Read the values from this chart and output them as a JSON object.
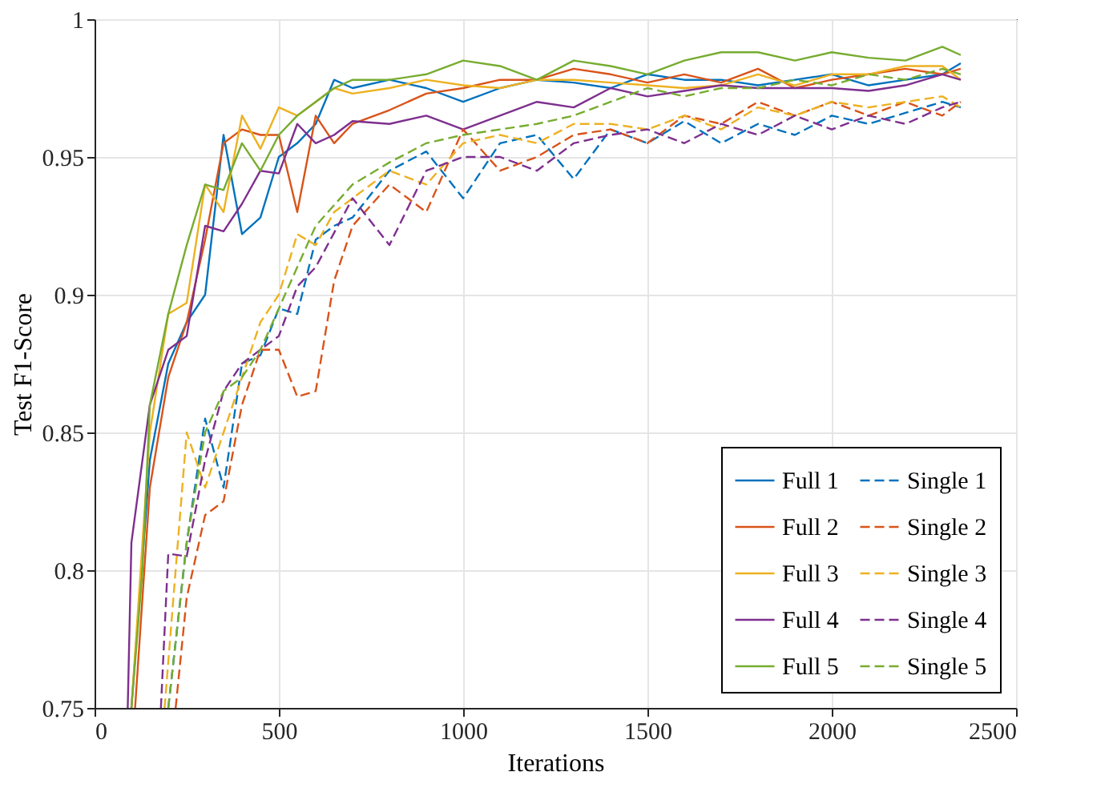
{
  "chart_data": {
    "type": "line",
    "xlabel": "Iterations",
    "ylabel": "Test F1-Score",
    "xlim": [
      0,
      2500
    ],
    "ylim": [
      0.75,
      1
    ],
    "xticks": [
      0,
      500,
      1000,
      1500,
      2000,
      2500
    ],
    "yticks": [
      0.75,
      0.8,
      0.85,
      0.9,
      0.95,
      1
    ],
    "grid": true,
    "legend": "bottom right",
    "marker": "none",
    "series": [
      {
        "name": "Full 1",
        "color": "#0072bd",
        "line_style": "solid",
        "x": [
          100,
          150,
          200,
          250,
          300,
          350,
          400,
          450,
          500,
          550,
          600,
          650,
          700,
          800,
          900,
          1000,
          1100,
          1200,
          1300,
          1400,
          1500,
          1600,
          1700,
          1800,
          1900,
          2000,
          2100,
          2200,
          2300,
          2350
        ],
        "values": [
          0.75,
          0.84,
          0.875,
          0.89,
          0.9,
          0.958,
          0.922,
          0.928,
          0.95,
          0.955,
          0.962,
          0.978,
          0.975,
          0.978,
          0.975,
          0.97,
          0.975,
          0.978,
          0.977,
          0.975,
          0.98,
          0.978,
          0.978,
          0.976,
          0.978,
          0.98,
          0.976,
          0.978,
          0.98,
          0.984
        ]
      },
      {
        "name": "Full 2",
        "color": "#d95319",
        "line_style": "solid",
        "x": [
          110,
          150,
          200,
          250,
          300,
          350,
          400,
          450,
          500,
          550,
          600,
          650,
          700,
          800,
          900,
          1000,
          1100,
          1200,
          1300,
          1400,
          1500,
          1600,
          1700,
          1800,
          1900,
          2000,
          2100,
          2200,
          2300,
          2350
        ],
        "values": [
          0.75,
          0.83,
          0.87,
          0.89,
          0.92,
          0.955,
          0.96,
          0.958,
          0.958,
          0.93,
          0.965,
          0.955,
          0.962,
          0.967,
          0.973,
          0.975,
          0.978,
          0.978,
          0.982,
          0.98,
          0.977,
          0.98,
          0.977,
          0.982,
          0.975,
          0.978,
          0.98,
          0.982,
          0.98,
          0.982
        ]
      },
      {
        "name": "Full 3",
        "color": "#edb120",
        "line_style": "solid",
        "x": [
          100,
          150,
          200,
          250,
          300,
          350,
          400,
          450,
          500,
          550,
          600,
          650,
          700,
          800,
          900,
          1000,
          1100,
          1200,
          1300,
          1400,
          1500,
          1600,
          1700,
          1800,
          1900,
          2000,
          2100,
          2200,
          2300,
          2350
        ],
        "values": [
          0.75,
          0.85,
          0.893,
          0.897,
          0.94,
          0.93,
          0.965,
          0.953,
          0.968,
          0.965,
          0.97,
          0.975,
          0.973,
          0.975,
          0.978,
          0.976,
          0.975,
          0.978,
          0.978,
          0.977,
          0.976,
          0.975,
          0.976,
          0.98,
          0.976,
          0.98,
          0.98,
          0.983,
          0.983,
          0.978
        ]
      },
      {
        "name": "Full 4",
        "color": "#7e2f8e",
        "line_style": "solid",
        "x": [
          90,
          100,
          150,
          200,
          250,
          300,
          350,
          400,
          450,
          500,
          550,
          600,
          650,
          700,
          800,
          900,
          1000,
          1100,
          1200,
          1300,
          1400,
          1500,
          1600,
          1700,
          1800,
          1900,
          2000,
          2100,
          2200,
          2300,
          2350
        ],
        "values": [
          0.75,
          0.81,
          0.86,
          0.88,
          0.885,
          0.925,
          0.923,
          0.933,
          0.945,
          0.944,
          0.962,
          0.955,
          0.958,
          0.963,
          0.962,
          0.965,
          0.96,
          0.965,
          0.97,
          0.968,
          0.975,
          0.972,
          0.974,
          0.976,
          0.975,
          0.975,
          0.975,
          0.974,
          0.976,
          0.98,
          0.978
        ]
      },
      {
        "name": "Full 5",
        "color": "#77ac30",
        "line_style": "solid",
        "x": [
          100,
          130,
          150,
          200,
          250,
          300,
          350,
          400,
          450,
          500,
          550,
          600,
          650,
          700,
          800,
          900,
          1000,
          1100,
          1200,
          1300,
          1400,
          1500,
          1600,
          1700,
          1800,
          1900,
          2000,
          2100,
          2200,
          2300,
          2350
        ],
        "values": [
          0.75,
          0.8,
          0.86,
          0.893,
          0.918,
          0.94,
          0.938,
          0.955,
          0.945,
          0.958,
          0.965,
          0.97,
          0.975,
          0.978,
          0.978,
          0.98,
          0.985,
          0.983,
          0.978,
          0.985,
          0.983,
          0.98,
          0.985,
          0.988,
          0.988,
          0.985,
          0.988,
          0.986,
          0.985,
          0.99,
          0.987
        ]
      },
      {
        "name": "Single 1",
        "color": "#0072bd",
        "line_style": "dashed",
        "x": [
          200,
          250,
          300,
          350,
          400,
          450,
          500,
          550,
          600,
          650,
          700,
          800,
          900,
          1000,
          1100,
          1200,
          1300,
          1400,
          1500,
          1600,
          1700,
          1800,
          1900,
          2000,
          2100,
          2200,
          2300,
          2350
        ],
        "values": [
          0.75,
          0.81,
          0.855,
          0.83,
          0.875,
          0.878,
          0.895,
          0.893,
          0.92,
          0.925,
          0.928,
          0.945,
          0.952,
          0.935,
          0.955,
          0.958,
          0.942,
          0.96,
          0.955,
          0.963,
          0.955,
          0.962,
          0.958,
          0.965,
          0.962,
          0.966,
          0.97,
          0.968
        ]
      },
      {
        "name": "Single 2",
        "color": "#d95319",
        "line_style": "dashed",
        "x": [
          220,
          250,
          300,
          350,
          400,
          450,
          500,
          550,
          600,
          650,
          700,
          800,
          900,
          1000,
          1100,
          1200,
          1300,
          1400,
          1500,
          1600,
          1700,
          1800,
          1900,
          2000,
          2100,
          2200,
          2300,
          2350
        ],
        "values": [
          0.75,
          0.79,
          0.82,
          0.825,
          0.86,
          0.88,
          0.88,
          0.863,
          0.865,
          0.905,
          0.925,
          0.94,
          0.93,
          0.96,
          0.945,
          0.95,
          0.958,
          0.96,
          0.955,
          0.965,
          0.962,
          0.97,
          0.965,
          0.97,
          0.965,
          0.97,
          0.965,
          0.97
        ]
      },
      {
        "name": "Single 3",
        "color": "#edb120",
        "line_style": "dashed",
        "x": [
          190,
          250,
          300,
          350,
          400,
          450,
          500,
          550,
          600,
          650,
          700,
          800,
          900,
          1000,
          1100,
          1200,
          1300,
          1400,
          1500,
          1600,
          1700,
          1800,
          1900,
          2000,
          2100,
          2200,
          2300,
          2350
        ],
        "values": [
          0.75,
          0.85,
          0.83,
          0.85,
          0.87,
          0.89,
          0.9,
          0.922,
          0.918,
          0.93,
          0.935,
          0.945,
          0.94,
          0.955,
          0.958,
          0.955,
          0.962,
          0.962,
          0.96,
          0.965,
          0.96,
          0.968,
          0.965,
          0.97,
          0.968,
          0.97,
          0.972,
          0.968
        ]
      },
      {
        "name": "Single 4",
        "color": "#7e2f8e",
        "line_style": "dashed",
        "x": [
          180,
          200,
          250,
          300,
          350,
          400,
          450,
          500,
          550,
          600,
          700,
          800,
          900,
          1000,
          1100,
          1200,
          1300,
          1400,
          1500,
          1600,
          1700,
          1800,
          1900,
          2000,
          2100,
          2200,
          2300,
          2350
        ],
        "values": [
          0.75,
          0.806,
          0.805,
          0.84,
          0.865,
          0.875,
          0.88,
          0.885,
          0.903,
          0.91,
          0.935,
          0.918,
          0.945,
          0.95,
          0.95,
          0.945,
          0.955,
          0.958,
          0.96,
          0.955,
          0.962,
          0.958,
          0.965,
          0.96,
          0.965,
          0.962,
          0.968,
          0.97
        ]
      },
      {
        "name": "Single 5",
        "color": "#77ac30",
        "line_style": "dashed",
        "x": [
          200,
          250,
          300,
          350,
          400,
          450,
          500,
          550,
          600,
          700,
          800,
          900,
          1000,
          1100,
          1200,
          1300,
          1400,
          1500,
          1600,
          1700,
          1800,
          1900,
          2000,
          2100,
          2200,
          2300,
          2350
        ],
        "values": [
          0.75,
          0.81,
          0.85,
          0.865,
          0.87,
          0.88,
          0.895,
          0.91,
          0.925,
          0.94,
          0.948,
          0.955,
          0.958,
          0.96,
          0.962,
          0.965,
          0.97,
          0.975,
          0.972,
          0.975,
          0.975,
          0.978,
          0.976,
          0.98,
          0.978,
          0.982,
          0.98
        ]
      }
    ]
  }
}
